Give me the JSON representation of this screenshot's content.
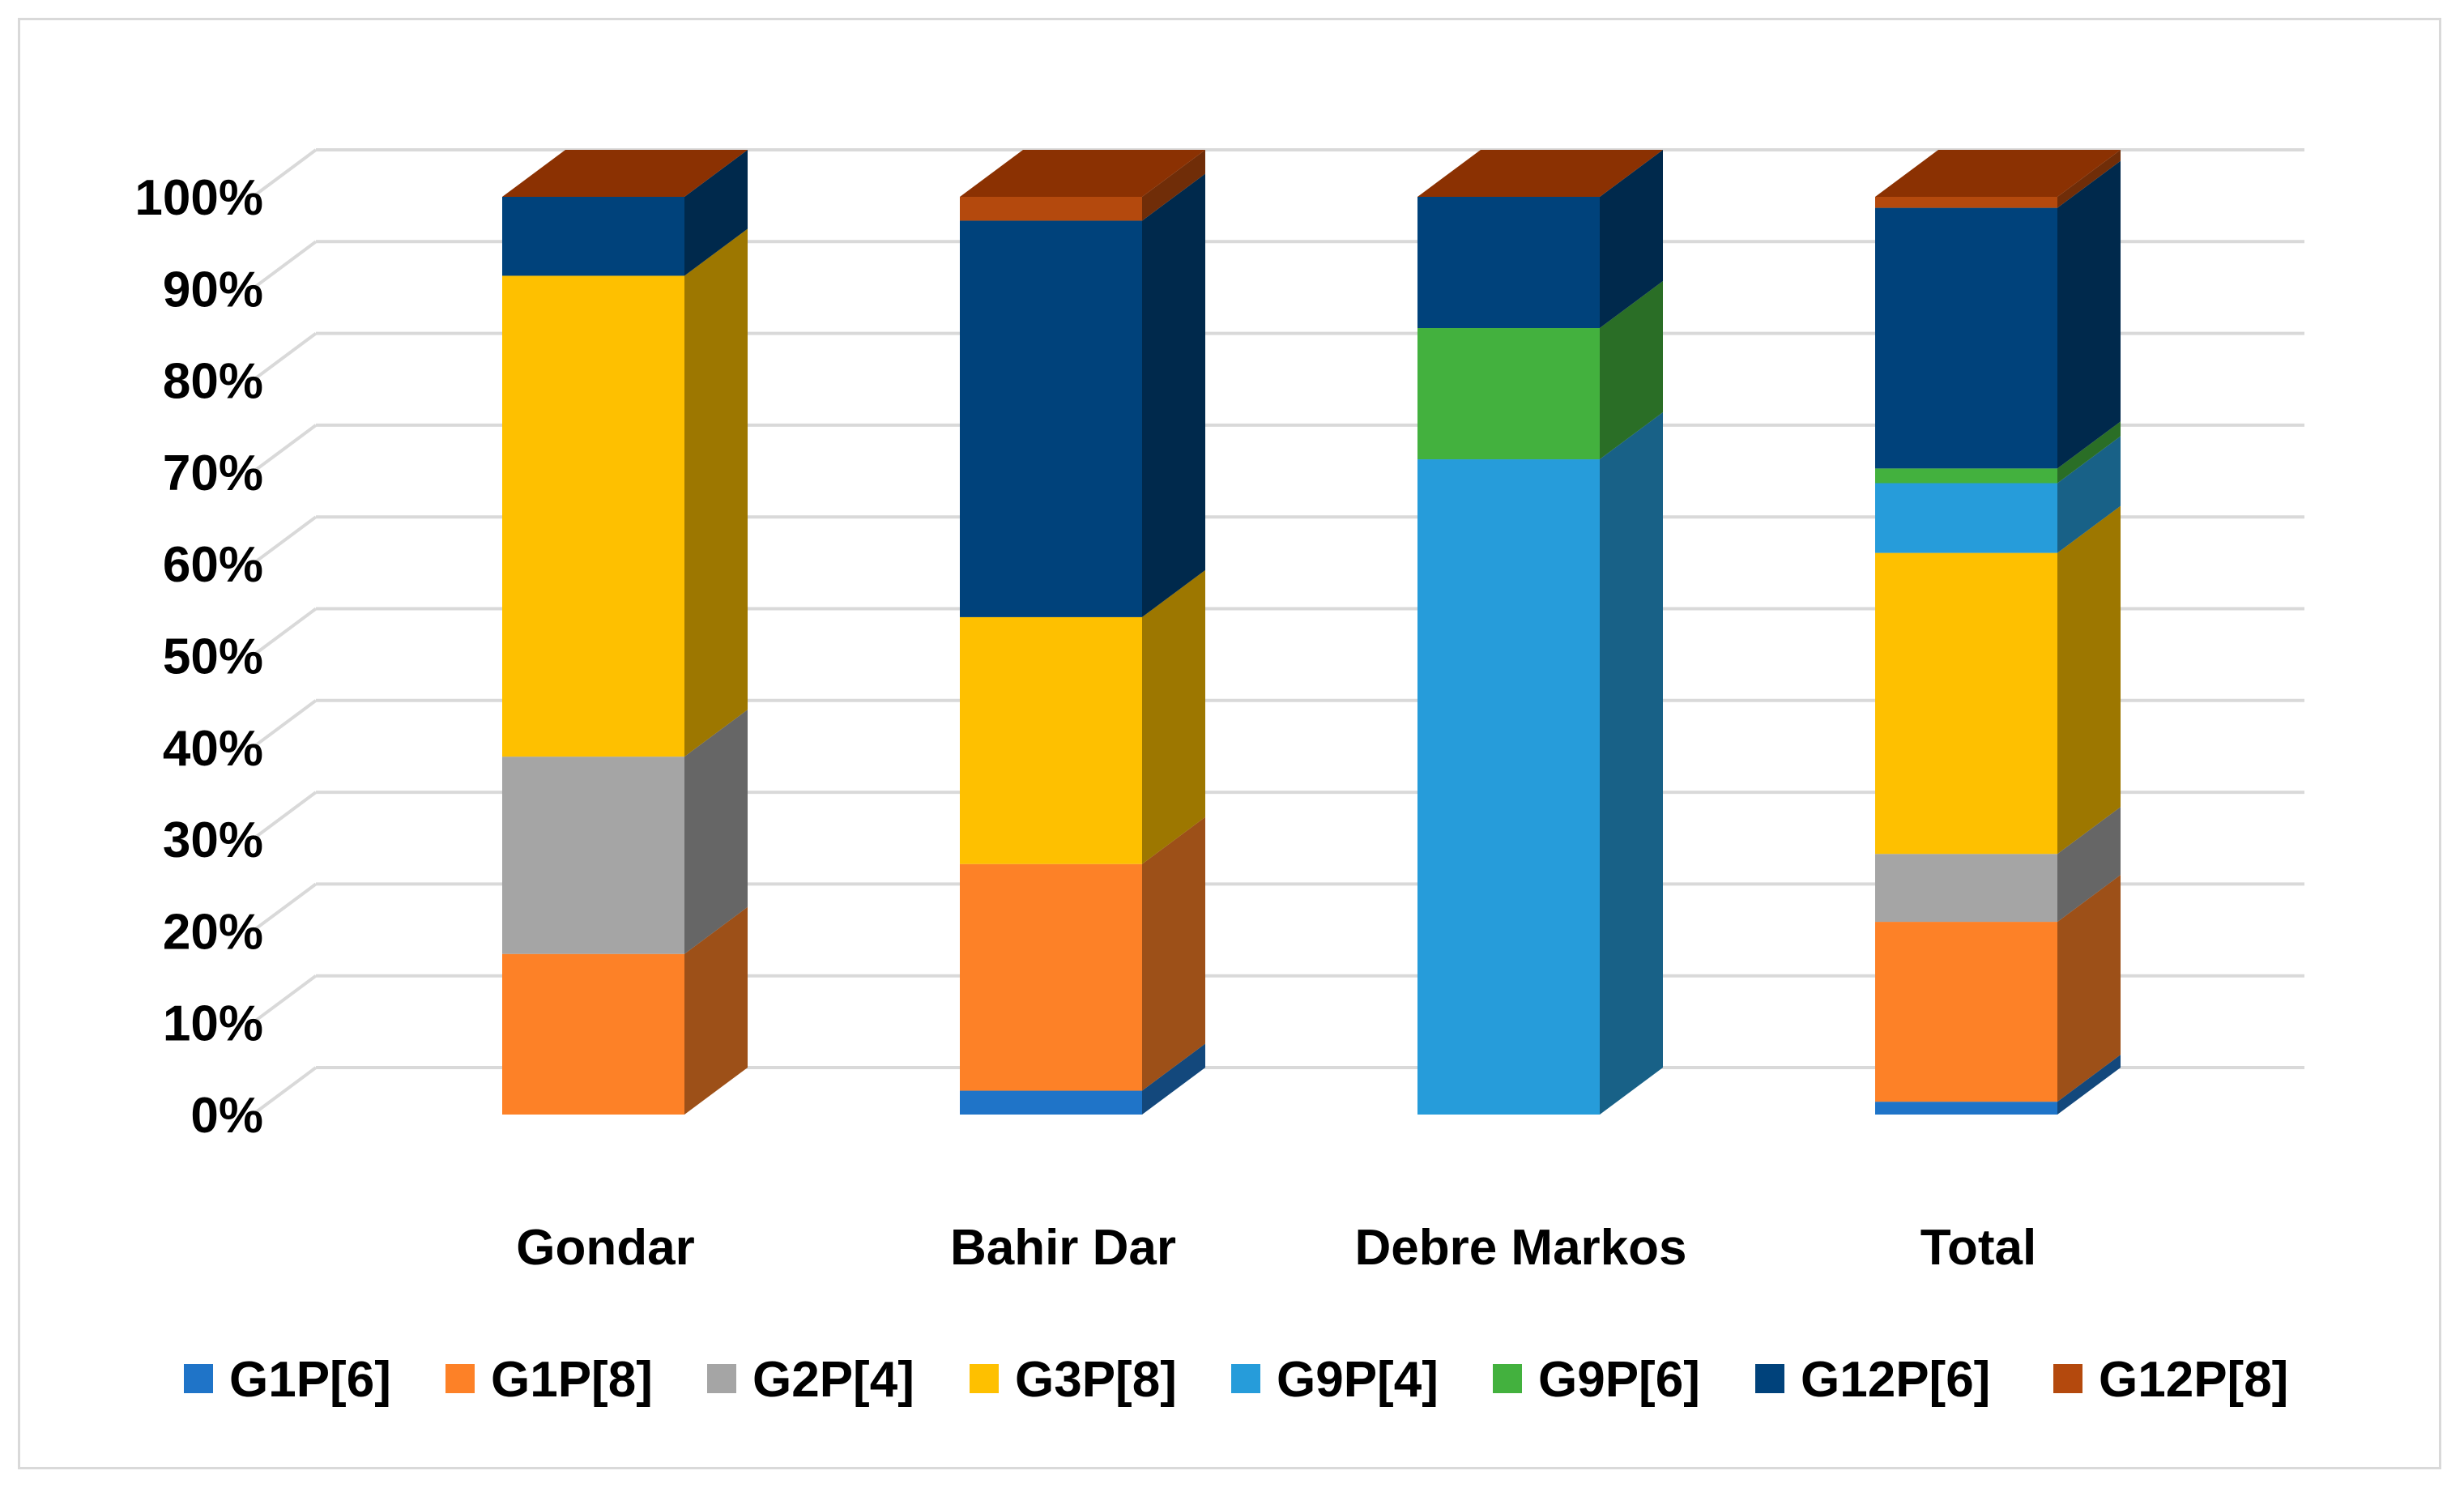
{
  "chart_data": {
    "type": "bar",
    "stacked": true,
    "stacking": "percent",
    "style": "3d",
    "title": "",
    "xlabel": "",
    "ylabel": "",
    "ylim": [
      0,
      100
    ],
    "grid": true,
    "legend_position": "bottom",
    "categories": [
      "Gondar",
      "Bahir Dar",
      "Debre Markos",
      "Total"
    ],
    "y_ticks": [
      "0%",
      "10%",
      "20%",
      "30%",
      "40%",
      "50%",
      "60%",
      "70%",
      "80%",
      "90%",
      "100%"
    ],
    "series": [
      {
        "name": "G1P[6]",
        "color": "#1f74c8",
        "values": [
          0,
          2.6,
          0,
          1.4
        ]
      },
      {
        "name": "G1P[8]",
        "color": "#fd8127",
        "values": [
          17.5,
          24.7,
          0,
          19.6
        ]
      },
      {
        "name": "G2P[4]",
        "color": "#a5a5a5",
        "values": [
          21.5,
          0,
          0,
          7.4
        ]
      },
      {
        "name": "G3P[8]",
        "color": "#fec000",
        "values": [
          52.4,
          26.9,
          0,
          32.8
        ]
      },
      {
        "name": "G9P[4]",
        "color": "#269cda",
        "values": [
          0,
          0,
          71.4,
          7.6
        ]
      },
      {
        "name": "G9P[6]",
        "color": "#43b13e",
        "values": [
          0,
          0,
          14.3,
          1.6
        ]
      },
      {
        "name": "G12P[6]",
        "color": "#00427b",
        "values": [
          8.6,
          43.2,
          14.3,
          28.4
        ]
      },
      {
        "name": "G12P[8]",
        "color": "#b4490d",
        "values": [
          0,
          2.6,
          0,
          1.2
        ]
      }
    ],
    "top_face_color": "#8b3102"
  }
}
